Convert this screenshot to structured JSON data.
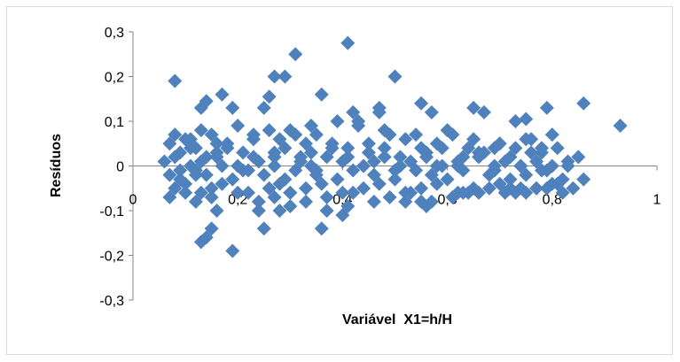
{
  "chart_data": {
    "type": "scatter",
    "xlabel": "Variável  X1=h/H",
    "ylabel": "Resíduos",
    "xlim": [
      0,
      1
    ],
    "ylim": [
      -0.3,
      0.3
    ],
    "x_ticks": [
      "0",
      "0,2",
      "0,4",
      "0,6",
      "0,8",
      "1"
    ],
    "y_ticks": [
      "0,3",
      "0,2",
      "0,1",
      "0",
      "-0,1",
      "-0,2",
      "-0,3"
    ],
    "grid": false,
    "legend": "none",
    "marker": "diamond",
    "color": "#4f81bd",
    "series": [
      {
        "x": [
          0.08,
          0.13,
          0.14,
          0.17,
          0.19,
          0.25,
          0.26,
          0.27,
          0.29,
          0.31,
          0.36,
          0.41,
          0.42,
          0.47,
          0.47,
          0.5,
          0.55,
          0.57,
          0.65,
          0.67,
          0.73,
          0.75,
          0.79,
          0.86,
          0.93,
          0.07,
          0.1,
          0.12,
          0.15,
          0.18,
          0.21,
          0.23,
          0.28,
          0.3,
          0.33,
          0.35,
          0.38,
          0.41,
          0.43,
          0.45,
          0.49,
          0.52,
          0.55,
          0.58,
          0.61,
          0.64,
          0.67,
          0.7,
          0.73,
          0.76,
          0.78,
          0.81,
          0.06,
          0.08,
          0.11,
          0.13,
          0.16,
          0.2,
          0.24,
          0.27,
          0.32,
          0.34,
          0.37,
          0.4,
          0.44,
          0.46,
          0.48,
          0.51,
          0.53,
          0.56,
          0.59,
          0.62,
          0.66,
          0.69,
          0.71,
          0.74,
          0.77,
          0.8,
          0.83,
          0.07,
          0.09,
          0.12,
          0.14,
          0.19,
          0.22,
          0.25,
          0.29,
          0.31,
          0.35,
          0.39,
          0.42,
          0.46,
          0.5,
          0.54,
          0.57,
          0.6,
          0.63,
          0.68,
          0.72,
          0.75,
          0.79,
          0.82,
          0.08,
          0.1,
          0.13,
          0.15,
          0.17,
          0.22,
          0.26,
          0.28,
          0.3,
          0.33,
          0.36,
          0.4,
          0.44,
          0.47,
          0.52,
          0.55,
          0.58,
          0.62,
          0.65,
          0.7,
          0.73,
          0.77,
          0.8,
          0.84,
          0.09,
          0.11,
          0.14,
          0.16,
          0.18,
          0.23,
          0.27,
          0.29,
          0.32,
          0.34,
          0.38,
          0.41,
          0.45,
          0.48,
          0.51,
          0.56,
          0.59,
          0.63,
          0.66,
          0.69,
          0.72,
          0.76,
          0.78,
          0.85,
          0.07,
          0.1,
          0.12,
          0.15,
          0.2,
          0.24,
          0.27,
          0.3,
          0.33,
          0.37,
          0.42,
          0.46,
          0.49,
          0.53,
          0.57,
          0.61,
          0.64,
          0.68,
          0.71,
          0.74,
          0.77,
          0.81,
          0.14,
          0.15,
          0.16,
          0.13,
          0.19,
          0.24,
          0.25,
          0.28,
          0.3,
          0.36,
          0.37,
          0.4,
          0.41,
          0.52,
          0.55,
          0.56,
          0.63,
          0.66,
          0.72,
          0.75,
          0.79,
          0.82,
          0.86,
          0.08,
          0.11,
          0.13,
          0.16,
          0.2,
          0.23,
          0.26,
          0.31,
          0.34,
          0.39,
          0.43,
          0.48,
          0.54,
          0.6,
          0.65,
          0.7,
          0.75,
          0.8,
          0.09,
          0.12,
          0.17,
          0.21,
          0.27,
          0.35,
          0.44,
          0.5,
          0.58,
          0.62,
          0.69,
          0.74,
          0.78,
          0.83
        ],
        "y": [
          0.19,
          0.13,
          0.145,
          0.16,
          0.13,
          0.13,
          0.155,
          0.2,
          0.2,
          0.25,
          0.16,
          0.275,
          0.12,
          0.12,
          0.13,
          0.2,
          0.14,
          0.12,
          0.13,
          0.12,
          0.1,
          0.105,
          0.13,
          0.14,
          0.09,
          0.05,
          0.06,
          0.04,
          0.07,
          0.05,
          0.03,
          0.07,
          0.06,
          0.08,
          0.05,
          0.07,
          0.05,
          0.04,
          0.1,
          0.05,
          0.07,
          0.06,
          0.04,
          0.05,
          0.07,
          0.04,
          0.03,
          0.05,
          0.04,
          0.06,
          0.03,
          0.04,
          0.01,
          0.02,
          0.0,
          0.01,
          0.02,
          0.0,
          0.01,
          0.02,
          0.01,
          0.0,
          0.02,
          0.01,
          0.0,
          0.01,
          0.02,
          0.0,
          0.01,
          0.02,
          0.0,
          0.01,
          0.02,
          0.0,
          0.01,
          0.0,
          0.01,
          0.0,
          0.01,
          -0.02,
          -0.03,
          -0.01,
          -0.02,
          -0.03,
          -0.01,
          -0.02,
          -0.03,
          -0.01,
          -0.02,
          -0.03,
          -0.01,
          -0.02,
          -0.03,
          -0.01,
          -0.02,
          -0.03,
          -0.01,
          -0.02,
          -0.03,
          -0.02,
          -0.01,
          -0.03,
          -0.05,
          -0.04,
          -0.06,
          -0.05,
          -0.04,
          -0.06,
          -0.05,
          -0.04,
          -0.06,
          -0.05,
          -0.04,
          -0.06,
          -0.05,
          -0.04,
          -0.06,
          -0.05,
          -0.04,
          -0.06,
          -0.05,
          -0.04,
          -0.06,
          -0.05,
          -0.04,
          -0.05,
          0.03,
          0.04,
          0.02,
          0.03,
          0.04,
          0.02,
          0.03,
          0.04,
          0.02,
          0.03,
          0.04,
          0.02,
          0.03,
          0.04,
          0.02,
          0.03,
          0.04,
          0.02,
          0.03,
          0.04,
          0.02,
          0.03,
          0.04,
          0.02,
          -0.07,
          -0.06,
          -0.08,
          -0.07,
          -0.06,
          -0.08,
          -0.07,
          -0.06,
          -0.08,
          -0.07,
          -0.06,
          -0.08,
          -0.07,
          -0.06,
          -0.08,
          -0.07,
          -0.06,
          -0.05,
          -0.06,
          -0.05,
          -0.05,
          -0.04,
          -0.16,
          -0.14,
          -0.1,
          -0.17,
          -0.19,
          -0.1,
          -0.14,
          -0.1,
          -0.09,
          -0.14,
          -0.1,
          -0.11,
          -0.09,
          -0.08,
          -0.08,
          -0.09,
          -0.06,
          -0.06,
          -0.05,
          -0.06,
          -0.05,
          -0.06,
          -0.03,
          0.07,
          0.06,
          0.08,
          0.05,
          0.09,
          0.06,
          0.08,
          0.07,
          0.09,
          0.1,
          0.09,
          0.08,
          0.07,
          0.08,
          0.06,
          0.05,
          0.06,
          0.07,
          -0.01,
          -0.02,
          0.0,
          -0.01,
          0.0,
          -0.01,
          0.0,
          -0.01,
          0.0,
          0.0,
          -0.01,
          0.0,
          -0.01,
          0.0
        ]
      }
    ]
  }
}
